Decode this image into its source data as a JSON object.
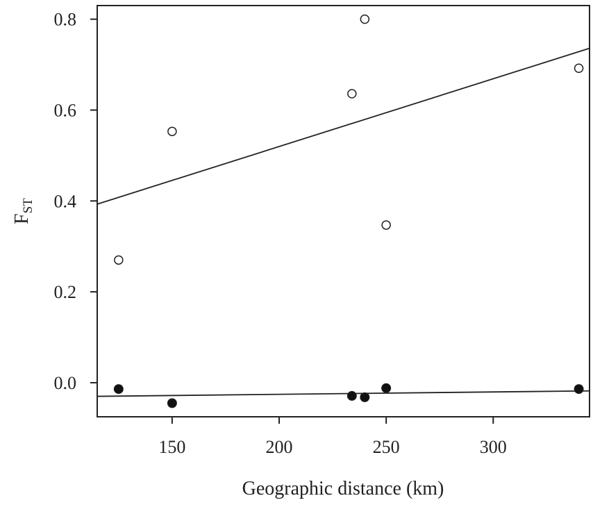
{
  "chart_data": {
    "type": "scatter",
    "title": "",
    "xlabel": "Geographic distance (km)",
    "ylabel": {
      "main": "F",
      "sub": "ST"
    },
    "xlim": [
      115,
      345
    ],
    "ylim": [
      -0.075,
      0.83
    ],
    "xticks": [
      150,
      200,
      250,
      300
    ],
    "yticks": [
      0.0,
      0.2,
      0.4,
      0.6,
      0.8
    ],
    "xtick_labels": [
      "150",
      "200",
      "250",
      "300"
    ],
    "ytick_labels": [
      "0.0",
      "0.2",
      "0.4",
      "0.6",
      "0.8"
    ],
    "grid": false,
    "legend": "none",
    "series": [
      {
        "marker": "open-circle",
        "points": [
          {
            "x": 125,
            "y": 0.27
          },
          {
            "x": 150,
            "y": 0.553
          },
          {
            "x": 234,
            "y": 0.636
          },
          {
            "x": 240,
            "y": 0.8
          },
          {
            "x": 250,
            "y": 0.347
          },
          {
            "x": 340,
            "y": 0.692
          }
        ],
        "trend_line": {
          "x": [
            115,
            345
          ],
          "y": [
            0.393,
            0.736
          ]
        }
      },
      {
        "marker": "filled-circle",
        "points": [
          {
            "x": 125,
            "y": -0.014
          },
          {
            "x": 150,
            "y": -0.045
          },
          {
            "x": 234,
            "y": -0.029
          },
          {
            "x": 240,
            "y": -0.032
          },
          {
            "x": 250,
            "y": -0.012
          },
          {
            "x": 340,
            "y": -0.014
          }
        ],
        "trend_line": {
          "x": [
            115,
            345
          ],
          "y": [
            -0.03,
            -0.018
          ]
        }
      }
    ]
  }
}
